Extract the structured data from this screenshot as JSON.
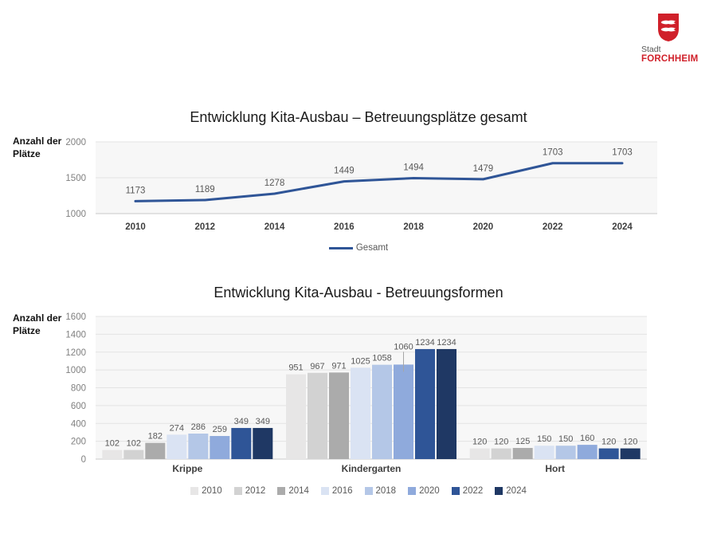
{
  "logo": {
    "stadt_label": "Stadt",
    "city_label": "FORCHHEIM",
    "crest_red": "#d0202a"
  },
  "chart_data": [
    {
      "type": "line",
      "title": "Entwicklung Kita-Ausbau – Betreuungsplätze gesamt",
      "ylabel": "Anzahl der Plätze",
      "x": [
        "2010",
        "2012",
        "2014",
        "2016",
        "2018",
        "2020",
        "2022",
        "2024"
      ],
      "series": [
        {
          "name": "Gesamt",
          "color": "#2f5597",
          "values": [
            1173,
            1189,
            1278,
            1449,
            1494,
            1479,
            1703,
            1703
          ]
        }
      ],
      "ylim": [
        1000,
        2000
      ],
      "yticks": [
        1000,
        1500,
        2000
      ],
      "grid": true,
      "data_labels": true,
      "legend_position": "bottom"
    },
    {
      "type": "bar",
      "title": "Entwicklung Kita-Ausbau - Betreuungsformen",
      "ylabel": "Anzahl der Plätze",
      "categories": [
        "Krippe",
        "Kindergarten",
        "Hort"
      ],
      "series": [
        {
          "name": "2010",
          "color": "#e7e6e6",
          "values": [
            102,
            951,
            120
          ]
        },
        {
          "name": "2012",
          "color": "#d2d2d2",
          "values": [
            102,
            967,
            120
          ]
        },
        {
          "name": "2014",
          "color": "#ababab",
          "values": [
            182,
            971,
            125
          ]
        },
        {
          "name": "2016",
          "color": "#dae3f3",
          "values": [
            274,
            1025,
            150
          ]
        },
        {
          "name": "2018",
          "color": "#b4c7e7",
          "values": [
            286,
            1058,
            150
          ]
        },
        {
          "name": "2020",
          "color": "#8faadc",
          "values": [
            259,
            1060,
            160
          ]
        },
        {
          "name": "2022",
          "color": "#2f5597",
          "values": [
            349,
            1234,
            120
          ]
        },
        {
          "name": "2024",
          "color": "#1f3864",
          "values": [
            349,
            1234,
            120
          ]
        }
      ],
      "ylim": [
        0,
        1600
      ],
      "ytick_step": 200,
      "grid": true,
      "data_labels": true,
      "legend_position": "bottom"
    }
  ]
}
